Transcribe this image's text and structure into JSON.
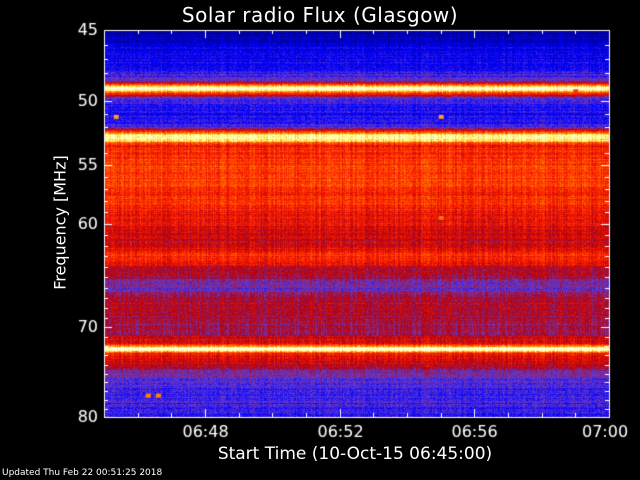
{
  "title": "Solar radio Flux (Glasgow)",
  "footer": "Updated Thu Feb 22 00:51:25 2018",
  "chart_data": {
    "type": "heatmap",
    "title": "Solar radio Flux (Glasgow)",
    "xlabel": "Start Time (10-Oct-15 06:45:00)",
    "ylabel": "Frequency [MHz]",
    "x_range_minutes": [
      0,
      15
    ],
    "x_ticks": [
      {
        "minute": 3,
        "label": "06:48"
      },
      {
        "minute": 7,
        "label": "06:52"
      },
      {
        "minute": 11,
        "label": "06:56"
      },
      {
        "minute": 15,
        "label": "07:00"
      }
    ],
    "ylim": [
      45,
      80
    ],
    "y_ticks": [
      45,
      50,
      55,
      60,
      70,
      80
    ],
    "y_tick_labels": [
      "45",
      "50",
      "55",
      "60",
      "70",
      "80"
    ],
    "y_scale": "log",
    "colormap": [
      "#000080",
      "#0000ff",
      "#6a3cc6",
      "#b00010",
      "#ff2000",
      "#ff8000",
      "#ffff80",
      "#ffffff"
    ],
    "intensity_profile": [
      {
        "mhz": 45.0,
        "level": 0.0
      },
      {
        "mhz": 45.3,
        "level": 0.05
      },
      {
        "mhz": 46.0,
        "level": 0.12
      },
      {
        "mhz": 47.5,
        "level": 0.15
      },
      {
        "mhz": 48.5,
        "level": 0.25
      },
      {
        "mhz": 48.9,
        "level": 0.8
      },
      {
        "mhz": 49.1,
        "level": 1.0
      },
      {
        "mhz": 49.4,
        "level": 0.65
      },
      {
        "mhz": 49.8,
        "level": 0.22
      },
      {
        "mhz": 51.0,
        "level": 0.17
      },
      {
        "mhz": 52.0,
        "level": 0.22
      },
      {
        "mhz": 52.6,
        "level": 0.85
      },
      {
        "mhz": 52.9,
        "level": 0.9
      },
      {
        "mhz": 53.4,
        "level": 0.55
      },
      {
        "mhz": 55.0,
        "level": 0.62
      },
      {
        "mhz": 58.0,
        "level": 0.58
      },
      {
        "mhz": 60.0,
        "level": 0.52
      },
      {
        "mhz": 61.5,
        "level": 0.45
      },
      {
        "mhz": 63.0,
        "level": 0.58
      },
      {
        "mhz": 64.5,
        "level": 0.42
      },
      {
        "mhz": 66.0,
        "level": 0.28
      },
      {
        "mhz": 67.5,
        "level": 0.45
      },
      {
        "mhz": 69.0,
        "level": 0.4
      },
      {
        "mhz": 70.5,
        "level": 0.38
      },
      {
        "mhz": 71.8,
        "level": 0.55
      },
      {
        "mhz": 72.3,
        "level": 1.0
      },
      {
        "mhz": 72.8,
        "level": 0.55
      },
      {
        "mhz": 74.0,
        "level": 0.45
      },
      {
        "mhz": 75.0,
        "level": 0.28
      },
      {
        "mhz": 77.0,
        "level": 0.24
      },
      {
        "mhz": 80.0,
        "level": 0.2
      }
    ],
    "artifacts": [
      {
        "minute": 0.35,
        "mhz": 51.2,
        "level": 0.75
      },
      {
        "minute": 10.0,
        "mhz": 51.2,
        "level": 0.75
      },
      {
        "minute": 10.0,
        "mhz": 59.5,
        "level": 0.7
      },
      {
        "minute": 1.3,
        "mhz": 77.5,
        "level": 0.72
      },
      {
        "minute": 1.6,
        "mhz": 77.5,
        "level": 0.72
      },
      {
        "minute": 14.0,
        "mhz": 49.3,
        "level": 0.6
      }
    ]
  }
}
